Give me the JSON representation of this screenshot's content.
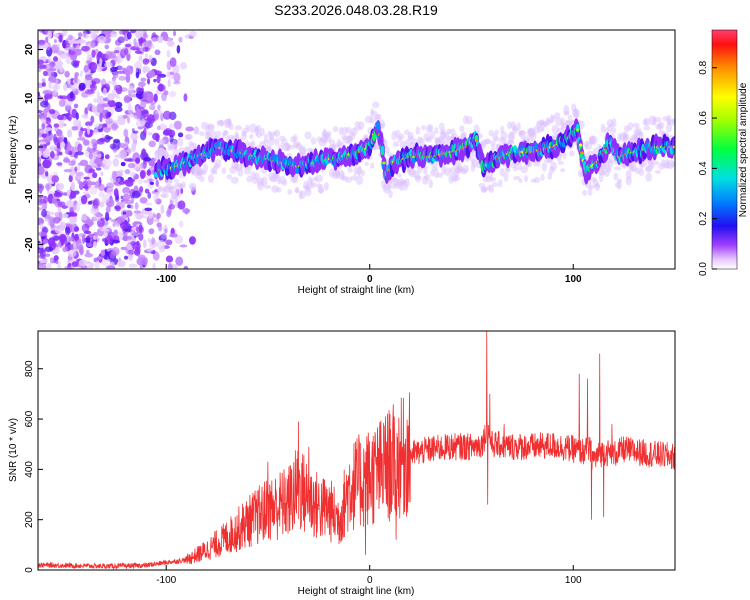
{
  "figure_title": "S233.2026.048.03.28.R19",
  "colors": {
    "snr_line": "#f03030",
    "axis": "#000000",
    "background": "#ffffff"
  },
  "chart_data": [
    {
      "type": "heatmap",
      "title": "S233.2026.048.03.28.R19",
      "xlabel": "Height of straight line (km)",
      "ylabel": "Frequency (Hz)",
      "xlim": [
        -163,
        150
      ],
      "ylim": [
        -25,
        24
      ],
      "x_ticks": [
        -100,
        0,
        100
      ],
      "y_ticks": [
        -20,
        -10,
        0,
        10,
        20
      ],
      "x_tick_labels": [
        "-100",
        "0",
        "100"
      ],
      "y_tick_labels": [
        "-20",
        "-10",
        "0",
        "10",
        "20"
      ],
      "colorbar": {
        "label": "Normalized spectral amplitude",
        "range": [
          0,
          0.95
        ],
        "ticks": [
          0,
          0.2,
          0.4,
          0.6,
          0.8
        ],
        "tick_labels": [
          "0.0",
          "0.2",
          "0.4",
          "0.6",
          "0.8"
        ],
        "colormap": "rainbow"
      },
      "ridge": {
        "description": "approximate peak frequency track vs height",
        "x": [
          -105,
          -95,
          -85,
          -75,
          -65,
          -55,
          -45,
          -35,
          -25,
          -15,
          -5,
          0,
          4,
          8,
          12,
          20,
          30,
          40,
          48,
          52,
          56,
          60,
          70,
          80,
          90,
          98,
          102,
          106,
          112,
          118,
          122,
          130,
          140,
          150
        ],
        "y": [
          -5,
          -4,
          -2,
          0,
          -1,
          -2,
          -3,
          -4,
          -3,
          -2,
          -1,
          0,
          5,
          -6,
          -3,
          -2,
          -2,
          -1,
          0,
          2,
          -4,
          -3,
          -1,
          -1,
          0,
          2,
          4,
          -5,
          -3,
          1,
          -2,
          -1,
          0,
          0
        ]
      },
      "noise_region": {
        "x_from": -163,
        "x_to": -85,
        "note": "scattered low-amplitude noise across all frequencies"
      }
    },
    {
      "type": "line",
      "title": "",
      "xlabel": "Height of straight line (km)",
      "ylabel": "SNR (10 * v/v)",
      "xlim": [
        -163,
        150
      ],
      "ylim": [
        0,
        950
      ],
      "x_ticks": [
        -100,
        0,
        100
      ],
      "y_ticks": [
        0,
        200,
        400,
        600,
        800
      ],
      "x_tick_labels": [
        "-100",
        "0",
        "100"
      ],
      "y_tick_labels": [
        "0",
        "200",
        "400",
        "600",
        "800"
      ],
      "series": [
        {
          "name": "SNR",
          "description": "noisy SNR trace; envelope sampled below (x in km, y in 10*v/v)",
          "x": [
            -163,
            -150,
            -130,
            -110,
            -100,
            -90,
            -80,
            -70,
            -60,
            -50,
            -40,
            -35,
            -30,
            -25,
            -20,
            -15,
            -10,
            -5,
            0,
            5,
            10,
            15,
            20,
            30,
            40,
            50,
            55,
            58,
            60,
            70,
            80,
            90,
            100,
            105,
            108,
            110,
            115,
            120,
            125,
            130,
            140,
            150
          ],
          "y": [
            20,
            18,
            15,
            18,
            30,
            40,
            80,
            130,
            190,
            240,
            270,
            330,
            280,
            250,
            240,
            200,
            330,
            350,
            370,
            390,
            420,
            440,
            460,
            480,
            490,
            490,
            500,
            560,
            500,
            490,
            490,
            495,
            480,
            470,
            480,
            440,
            470,
            460,
            480,
            470,
            460,
            450
          ],
          "spikes": [
            {
              "x": 57.5,
              "y": 950
            },
            {
              "x": 59,
              "y": 700
            },
            {
              "x": 66,
              "y": 580
            },
            {
              "x": 103,
              "y": 780
            },
            {
              "x": 107,
              "y": 760
            },
            {
              "x": 113,
              "y": 860
            },
            {
              "x": 119,
              "y": 580
            },
            {
              "x": -35,
              "y": 590
            },
            {
              "x": -30,
              "y": 490
            },
            {
              "x": -50,
              "y": 430
            },
            {
              "x": 7,
              "y": 520
            }
          ],
          "dips": [
            {
              "x": 58,
              "y": 260
            },
            {
              "x": 109,
              "y": 200
            },
            {
              "x": 115,
              "y": 210
            },
            {
              "x": 13,
              "y": 120
            },
            {
              "x": -2,
              "y": 60
            }
          ]
        }
      ]
    }
  ]
}
